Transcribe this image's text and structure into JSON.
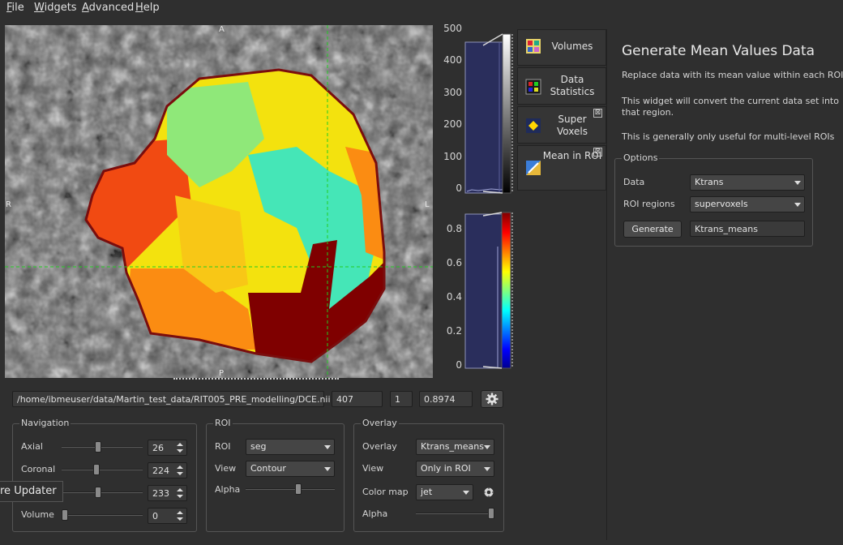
{
  "menu": {
    "file": {
      "first": "F",
      "rest": "ile"
    },
    "widgets": {
      "first": "W",
      "rest": "idgets"
    },
    "advanced": {
      "first": "A",
      "rest": "dvanced"
    },
    "help": {
      "first": "H",
      "rest": "elp"
    }
  },
  "viewer": {
    "orientation": {
      "top": "A",
      "left": "R",
      "right": "L",
      "bottom": "P"
    },
    "crosshair_color": "#22cc22"
  },
  "histogram_top": {
    "ticks": [
      "500",
      "400",
      "300",
      "200",
      "100",
      "0"
    ]
  },
  "histogram_bottom": {
    "ticks": [
      "0.8",
      "0.6",
      "0.4",
      "0.2",
      "0"
    ]
  },
  "tabs": [
    {
      "label": "Volumes",
      "icon": "volumes-icon"
    },
    {
      "label": "Data Statistics",
      "icon": "data-statistics-icon"
    },
    {
      "label": "Super Voxels",
      "icon": "super-voxels-icon",
      "closable": true
    },
    {
      "label": "Mean in ROI",
      "icon": "mean-in-roi-icon",
      "closable": true
    }
  ],
  "close_glyph": "⊠",
  "panel": {
    "title": "Generate Mean Values Data",
    "desc1": "Replace data with its mean value within each ROI",
    "desc2a": "This widget will convert the current data set into",
    "desc2b": "that region.",
    "desc3": "This is generally only useful for multi-level ROIs",
    "options_title": "Options",
    "data_label": "Data",
    "data_value": "Ktrans",
    "roi_regions_label": "ROI regions",
    "roi_regions_value": "supervoxels",
    "generate_label": "Generate",
    "output_name": "Ktrans_means"
  },
  "status": {
    "path": "/home/ibmeuser/data/Martin_test_data/RIT005_PRE_modelling/DCE.nii",
    "field1": "407",
    "field2": "1",
    "field3": "0.8974",
    "settings_icon": "gear-icon"
  },
  "navigation": {
    "title": "Navigation",
    "axial_label": "Axial",
    "axial_value": "26",
    "axial_fraction": 0.45,
    "coronal_label": "Coronal",
    "coronal_value": "224",
    "coronal_fraction": 0.42,
    "sagittal_value": "233",
    "sagittal_fraction": 0.45,
    "volume_label": "Volume",
    "volume_value": "0",
    "volume_fraction": 0.0
  },
  "roi": {
    "title": "ROI",
    "roi_label": "ROI",
    "roi_value": "seg",
    "view_label": "View",
    "view_value": "Contour",
    "alpha_label": "Alpha",
    "alpha_fraction": 0.6
  },
  "overlay": {
    "title": "Overlay",
    "overlay_label": "Overlay",
    "overlay_value": "Ktrans_means",
    "view_label": "View",
    "view_value": "Only in ROI",
    "colormap_label": "Color map",
    "colormap_value": "jet",
    "alpha_label": "Alpha",
    "alpha_fraction": 1.0
  },
  "tooltip": {
    "text": "re Updater"
  }
}
